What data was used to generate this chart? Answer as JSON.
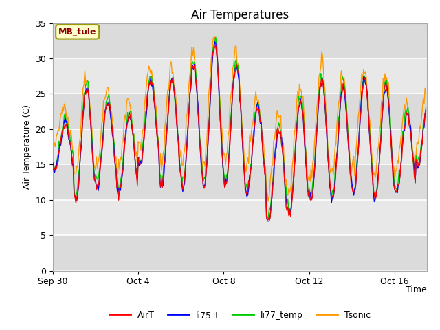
{
  "title": "Air Temperatures",
  "xlabel": "Time",
  "ylabel": "Air Temperature (C)",
  "ylim": [
    0,
    35
  ],
  "yticks": [
    0,
    5,
    10,
    15,
    20,
    25,
    30,
    35
  ],
  "annotation_text": "MB_tule",
  "legend_labels": [
    "AirT",
    "li75_t",
    "li77_temp",
    "Tsonic"
  ],
  "line_colors": [
    "#ff0000",
    "#0000ff",
    "#00cc00",
    "#ff9900"
  ],
  "xtick_labels": [
    "Sep 30",
    "Oct 4",
    "Oct 8",
    "Oct 12",
    "Oct 16"
  ],
  "title_fontsize": 12,
  "label_fontsize": 9,
  "tick_fontsize": 9,
  "legend_fontsize": 9,
  "fig_facecolor": "#ffffff",
  "axes_facecolor": "#e8e8e8",
  "grid_color": "#ffffff"
}
